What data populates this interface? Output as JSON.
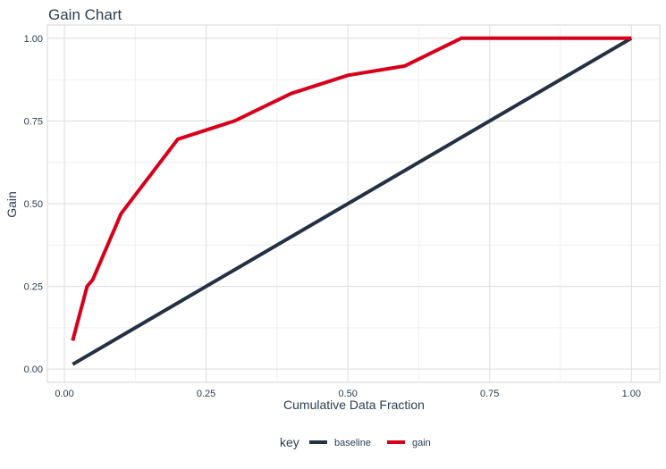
{
  "chart_data": {
    "type": "line",
    "title": "Gain Chart",
    "xlabel": "Cumulative Data Fraction",
    "ylabel": "Gain",
    "xlim": [
      -0.03,
      1.05
    ],
    "ylim": [
      -0.04,
      1.04
    ],
    "x_ticks": [
      0.0,
      0.25,
      0.5,
      0.75,
      1.0
    ],
    "x_tick_labels": [
      "0.00",
      "0.25",
      "0.50",
      "0.75",
      "1.00"
    ],
    "y_ticks": [
      0.0,
      0.25,
      0.5,
      0.75,
      1.0
    ],
    "y_tick_labels": [
      "0.00",
      "0.25",
      "0.50",
      "0.75",
      "1.00"
    ],
    "grid": true,
    "legend": {
      "title": "key",
      "position": "bottom"
    },
    "series": [
      {
        "name": "baseline",
        "color": "#233142",
        "x": [
          0.0146,
          1.0
        ],
        "y": [
          0.0146,
          1.0
        ]
      },
      {
        "name": "gain",
        "color": "#d7001a",
        "x": [
          0.0146,
          0.04,
          0.05,
          0.1,
          0.2,
          0.3,
          0.4,
          0.5,
          0.6,
          0.7,
          0.8,
          0.9,
          1.0
        ],
        "y": [
          0.086,
          0.25,
          0.27,
          0.47,
          0.695,
          0.75,
          0.833,
          0.888,
          0.916,
          1.0,
          1.0,
          1.0,
          1.0
        ]
      }
    ]
  }
}
